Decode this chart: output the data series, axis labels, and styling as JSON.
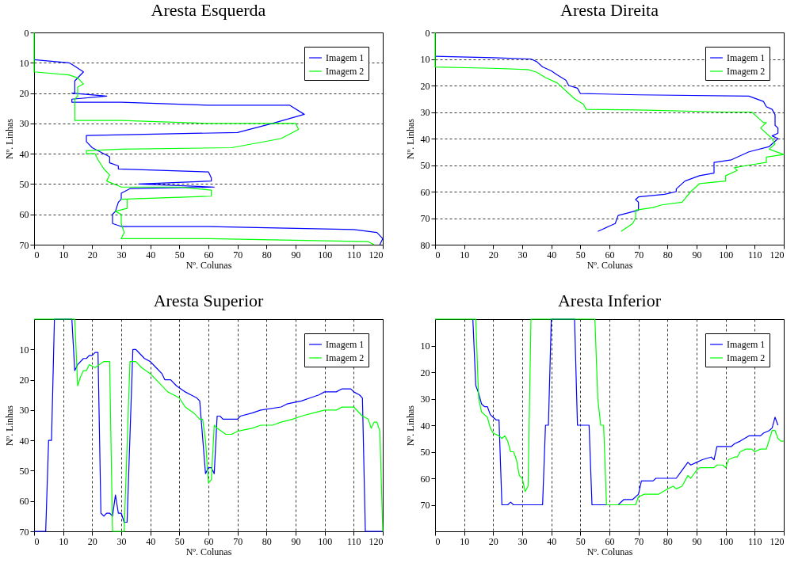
{
  "chart_data": [
    {
      "type": "line",
      "title": "Aresta Esquerda",
      "xlabel": "Nº. Colunas",
      "ylabel": "Nº. Linhas",
      "xlim": [
        0,
        120
      ],
      "xticks": [
        0,
        10,
        20,
        30,
        40,
        50,
        60,
        70,
        80,
        90,
        100,
        110,
        120
      ],
      "ylim": [
        70,
        0
      ],
      "yticks": [
        0,
        10,
        20,
        30,
        40,
        50,
        60,
        70
      ],
      "grid": "y",
      "legend": "top right",
      "series": [
        {
          "name": "Imagem 1",
          "color": "#0000ff",
          "x": [
            0,
            12,
            13,
            17,
            14,
            14,
            13,
            25,
            13,
            13,
            30,
            60,
            88,
            93,
            82,
            70,
            18,
            18,
            20,
            26,
            26,
            29,
            29,
            60,
            61,
            61,
            36,
            62,
            33,
            30,
            30,
            29,
            28,
            27,
            27,
            30,
            60,
            110,
            118,
            120,
            119
          ],
          "values": [
            9,
            10,
            10.5,
            13,
            16,
            20,
            20,
            21,
            22,
            23,
            23,
            24,
            24,
            27,
            30,
            33,
            34,
            36,
            38,
            41,
            43,
            44,
            45,
            46,
            48,
            49,
            50,
            51,
            51.5,
            53,
            55,
            56,
            59,
            60,
            63,
            64,
            64,
            65,
            66,
            68,
            70
          ]
        },
        {
          "name": "Imagem 2",
          "color": "#00ff00",
          "x": [
            0,
            0,
            12,
            15,
            17,
            15,
            15,
            14,
            14,
            30,
            60,
            90,
            91,
            85,
            68,
            30,
            18,
            18,
            21,
            22,
            24,
            26,
            25,
            30,
            50,
            61,
            61,
            30,
            32,
            32,
            28,
            30,
            30,
            31,
            30,
            60,
            115,
            117
          ],
          "values": [
            0,
            13,
            14,
            15,
            17,
            18,
            21,
            22,
            29,
            29,
            30,
            30,
            32,
            35,
            38,
            38.5,
            39,
            40,
            40,
            42,
            45,
            47,
            49,
            51,
            51,
            52,
            54,
            55,
            55,
            58,
            59,
            60,
            63,
            66,
            68,
            68,
            69,
            70
          ]
        }
      ]
    },
    {
      "type": "line",
      "title": "Aresta Direita",
      "xlabel": "Nº. Colunas",
      "ylabel": "Nº. Linhas",
      "xlim": [
        0,
        120
      ],
      "xticks": [
        0,
        10,
        20,
        30,
        40,
        50,
        60,
        70,
        80,
        90,
        100,
        110,
        120
      ],
      "ylim": [
        80,
        0
      ],
      "yticks": [
        0,
        10,
        20,
        30,
        40,
        50,
        60,
        70,
        80
      ],
      "grid": "y",
      "legend": "top right",
      "series": [
        {
          "name": "Imagem 1",
          "color": "#0000ff",
          "x": [
            0,
            20,
            33,
            35,
            37,
            40,
            42,
            45,
            46,
            49,
            50,
            70,
            108,
            113,
            114,
            116,
            117,
            117,
            118,
            118,
            116,
            118,
            115,
            108,
            102,
            96,
            96,
            91,
            86,
            83,
            83,
            79,
            70,
            69,
            70,
            70,
            63,
            62,
            60,
            56
          ],
          "values": [
            9,
            9.5,
            10,
            11,
            13,
            14.5,
            16,
            18,
            20,
            21,
            23,
            23.5,
            24,
            26,
            28,
            29,
            31,
            35,
            36,
            38,
            39,
            40,
            43,
            45,
            48,
            49,
            53,
            54,
            56,
            59,
            60,
            61,
            62,
            63,
            64,
            67,
            69,
            72,
            73,
            75
          ]
        },
        {
          "name": "Imagem 2",
          "color": "#00ff00",
          "x": [
            0,
            0,
            20,
            32,
            35,
            38,
            42,
            46,
            48,
            51,
            52,
            70,
            100,
            109,
            113,
            114,
            112,
            116,
            117,
            115,
            120,
            114,
            114,
            108,
            103,
            104,
            100,
            100,
            91,
            88,
            85,
            78,
            75,
            69,
            69,
            68,
            64
          ],
          "values": [
            0,
            13,
            13.5,
            14,
            15,
            17,
            19,
            23,
            25,
            27,
            29,
            29.2,
            30,
            30,
            34,
            34,
            36,
            40,
            42,
            44,
            46,
            47,
            49,
            50,
            51,
            52,
            54,
            56,
            57,
            60,
            64,
            65,
            66,
            67,
            70,
            72,
            75
          ]
        }
      ]
    },
    {
      "type": "line",
      "title": "Aresta Superior",
      "xlabel": "Nº. Colunas",
      "ylabel": "Nº. Linhas",
      "xlim": [
        0,
        120
      ],
      "xticks": [
        0,
        10,
        20,
        30,
        40,
        50,
        60,
        70,
        80,
        90,
        100,
        110,
        120
      ],
      "ylim": [
        70,
        0
      ],
      "yticks": [
        10,
        20,
        30,
        40,
        50,
        60,
        70
      ],
      "grid": "x",
      "legend": "top right",
      "series": [
        {
          "name": "Imagem 1",
          "color": "#0000ff",
          "x": [
            0,
            4,
            5,
            6,
            7,
            13,
            14,
            15,
            17,
            18,
            19,
            20,
            21,
            22,
            23,
            24,
            25,
            26,
            27,
            28,
            29,
            30,
            31,
            32,
            34,
            35,
            38,
            40,
            42,
            44,
            45,
            47,
            49,
            52,
            54,
            56,
            57,
            59,
            60,
            61,
            62,
            63,
            64,
            65,
            70,
            71,
            75,
            78,
            85,
            87,
            92,
            95,
            98,
            100,
            104,
            106,
            109,
            110,
            112,
            113,
            114,
            120
          ],
          "values": [
            70,
            70,
            40,
            40,
            0,
            0,
            17,
            15,
            13,
            13,
            12,
            12,
            11,
            11,
            64,
            65,
            64,
            64,
            65,
            58,
            64,
            64,
            67,
            67,
            10,
            10,
            13,
            14,
            16,
            18,
            20,
            20,
            22,
            24,
            25,
            26,
            27,
            51,
            49,
            49,
            51,
            32,
            32,
            33,
            33,
            32,
            31,
            30,
            29,
            28,
            27,
            26,
            25,
            24,
            24,
            23,
            23,
            24,
            25,
            26,
            70,
            70
          ]
        },
        {
          "name": "Imagem 2",
          "color": "#00ff00",
          "x": [
            0,
            14,
            15,
            16,
            17,
            18,
            19,
            21,
            24,
            26,
            27,
            31,
            33,
            35,
            37,
            40,
            43,
            46,
            48,
            50,
            52,
            55,
            57,
            58,
            59,
            60,
            61,
            62,
            63,
            66,
            68,
            70,
            75,
            78,
            82,
            85,
            89,
            92,
            96,
            100,
            104,
            106,
            110,
            113,
            115,
            116,
            117,
            118,
            119,
            120
          ],
          "values": [
            0,
            0,
            22,
            19,
            17,
            17,
            15,
            16,
            14,
            14,
            70,
            70,
            14,
            14,
            16,
            18,
            21,
            24,
            25,
            26,
            29,
            31,
            33,
            33,
            40,
            54,
            53,
            35,
            36,
            38,
            38,
            37,
            36,
            35,
            35,
            34,
            33,
            32,
            31,
            30,
            30,
            29,
            29,
            32,
            33,
            36,
            34,
            34,
            37,
            70
          ]
        }
      ]
    },
    {
      "type": "line",
      "title": "Aresta Inferior",
      "xlabel": "Nº. Colunas",
      "ylabel": "Nº. Linhas",
      "xlim": [
        0,
        120
      ],
      "xticks": [
        0,
        10,
        20,
        30,
        40,
        50,
        60,
        70,
        80,
        90,
        100,
        110,
        120
      ],
      "ylim": [
        80,
        0
      ],
      "yticks": [
        10,
        20,
        30,
        40,
        50,
        60,
        70
      ],
      "grid": "x",
      "legend": "top right",
      "series": [
        {
          "name": "Imagem 1",
          "color": "#0000ff",
          "x": [
            13,
            14,
            15,
            16,
            17,
            18,
            19,
            20,
            21,
            22,
            23,
            25,
            26,
            27,
            37,
            38,
            39,
            40,
            48,
            49,
            53,
            54,
            63,
            65,
            68,
            70,
            71,
            75,
            76,
            83,
            85,
            87,
            88,
            90,
            92,
            95,
            96,
            97,
            102,
            103,
            105,
            108,
            112,
            113,
            115,
            116,
            117,
            118
          ],
          "values": [
            0,
            25,
            28,
            32,
            33,
            33,
            36,
            37,
            38,
            38,
            70,
            70,
            69,
            70,
            70,
            40,
            40,
            0,
            0,
            40,
            40,
            70,
            70,
            68,
            68,
            66,
            61,
            61,
            60,
            60,
            57,
            54,
            55,
            54,
            53,
            52,
            53,
            48,
            48,
            47,
            46,
            44,
            44,
            43,
            42,
            41,
            37,
            40
          ]
        },
        {
          "name": "Imagem 2",
          "color": "#00ff00",
          "x": [
            0,
            14,
            15,
            16,
            17,
            18,
            19,
            20,
            22,
            23,
            24,
            25,
            26,
            27,
            28,
            29,
            30,
            31,
            32,
            33,
            55,
            56,
            57,
            58,
            59,
            69,
            70,
            72,
            77,
            80,
            82,
            83,
            85,
            87,
            88,
            90,
            91,
            96,
            97,
            99,
            100,
            101,
            103,
            104,
            105,
            107,
            109,
            110,
            112,
            114,
            116,
            117,
            118,
            119,
            120
          ],
          "values": [
            0,
            0,
            30,
            35,
            36,
            37,
            41,
            43,
            44,
            45,
            44,
            46,
            50,
            50,
            53,
            59,
            60,
            65,
            63,
            0,
            0,
            30,
            40,
            40,
            70,
            70,
            67,
            66,
            66,
            64,
            63,
            64,
            63,
            59,
            60,
            57,
            56,
            56,
            55,
            55,
            56,
            53,
            52,
            52,
            50,
            49,
            49,
            50,
            49,
            49,
            42,
            42,
            45,
            46,
            46
          ]
        }
      ]
    }
  ]
}
